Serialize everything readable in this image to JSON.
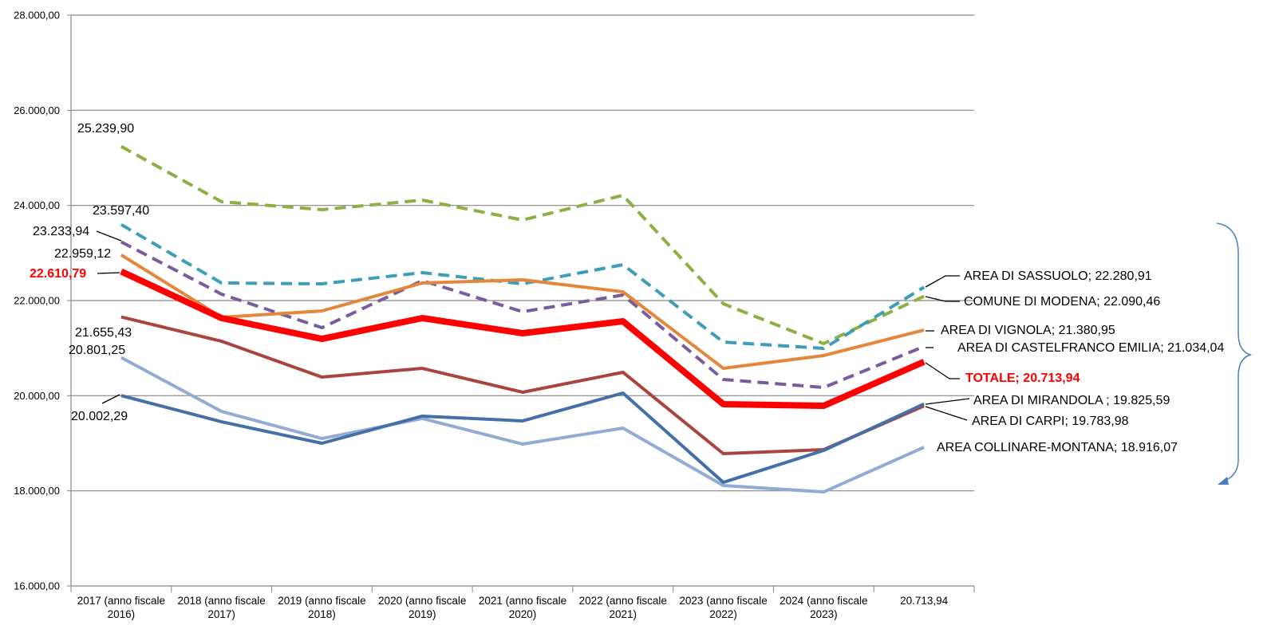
{
  "chart_data": {
    "type": "line",
    "categories": [
      "2017 (anno fiscale 2016)",
      "2018 (anno fiscale 2017)",
      "2019 (anno fiscale 2018)",
      "2020 (anno fiscale 2019)",
      "2021 (anno fiscale 2020)",
      "2022 (anno fiscale 2021)",
      "2023 (anno fiscale 2022)",
      "2024 (anno fiscale 2023)",
      "20.713,94"
    ],
    "ylim": [
      16000,
      28000
    ],
    "yticks": [
      {
        "value": 16000,
        "label": "16.000,00"
      },
      {
        "value": 18000,
        "label": "18.000,00"
      },
      {
        "value": 20000,
        "label": "20.000,00"
      },
      {
        "value": 22000,
        "label": "22.000,00"
      },
      {
        "value": 24000,
        "label": "24.000,00"
      },
      {
        "value": 26000,
        "label": "26.000,00"
      },
      {
        "value": 28000,
        "label": "28.000,00"
      }
    ],
    "grid": true,
    "series": [
      {
        "color": "#8DB043",
        "dashed": true,
        "line_width": 4,
        "values": [
          25239.9,
          24078,
          23911,
          24112,
          23693,
          24212,
          21933,
          21095,
          22090.46
        ],
        "value_labels": [
          "25.239,90",
          null,
          null,
          null,
          null,
          null,
          null,
          null,
          "COMUNE DI MODENA; 22.090,46"
        ]
      },
      {
        "color": "#3E9DB7",
        "dashed": true,
        "line_width": 4,
        "values": [
          23597.4,
          22369,
          22352,
          22587,
          22352,
          22754,
          21128,
          20994,
          22280.91
        ],
        "value_labels": [
          "23.597,40",
          null,
          null,
          null,
          null,
          null,
          null,
          null,
          "AREA DI SASSUOLO; 22.280,91"
        ]
      },
      {
        "color": "#7A5C9C",
        "dashed": true,
        "line_width": 4,
        "values": [
          23233.94,
          22134,
          21430,
          22419,
          21765,
          22117,
          20341,
          20173,
          21034.04
        ],
        "value_labels": [
          "23.233,94",
          null,
          null,
          null,
          null,
          null,
          null,
          null,
          "AREA DI CASTELFRANCO EMILIA; 21.034,04"
        ]
      },
      {
        "color": "#E2873B",
        "dashed": false,
        "line_width": 4,
        "values": [
          22959.12,
          21648,
          21782,
          22369,
          22436,
          22184,
          20575,
          20844,
          21380.95
        ],
        "value_labels": [
          "22.959,12",
          null,
          null,
          null,
          null,
          null,
          null,
          null,
          "AREA DI VIGNOLA; 21.380,95"
        ]
      },
      {
        "color": "#FF0000",
        "dashed": false,
        "line_width": 8,
        "bold_labels": true,
        "values": [
          22610.79,
          21631,
          21195,
          21631,
          21313,
          21564,
          19821,
          19788,
          20713.94
        ],
        "value_labels": [
          "22.610,79",
          null,
          null,
          null,
          null,
          null,
          null,
          null,
          "TOTALE; 20.713,94"
        ]
      },
      {
        "color": "#A9443F",
        "dashed": false,
        "line_width": 4,
        "values": [
          21655.43,
          21145,
          20391,
          20575,
          20073,
          20492,
          18782,
          18866,
          19783.98
        ],
        "value_labels": [
          "21.655,43",
          null,
          null,
          null,
          null,
          null,
          null,
          null,
          "AREA DI CARPI; 19.783,98"
        ]
      },
      {
        "color": "#92ABD4",
        "dashed": false,
        "line_width": 4,
        "values": [
          20801.25,
          19670,
          19100,
          19520,
          18983,
          19318,
          18111,
          17977,
          18916.07
        ],
        "value_labels": [
          "20.801,25",
          null,
          null,
          null,
          null,
          null,
          null,
          null,
          "AREA COLLINARE-MONTANA; 18.916,07"
        ]
      },
      {
        "color": "#4470A8",
        "dashed": false,
        "line_width": 4,
        "values": [
          20002.29,
          19452,
          19000,
          19570,
          19470,
          20056,
          18178,
          18849,
          19825.59
        ],
        "value_labels": [
          "20.002,29",
          null,
          null,
          null,
          null,
          null,
          null,
          null,
          "AREA DI MIRANDOLA ; 19.825,59"
        ]
      }
    ]
  }
}
